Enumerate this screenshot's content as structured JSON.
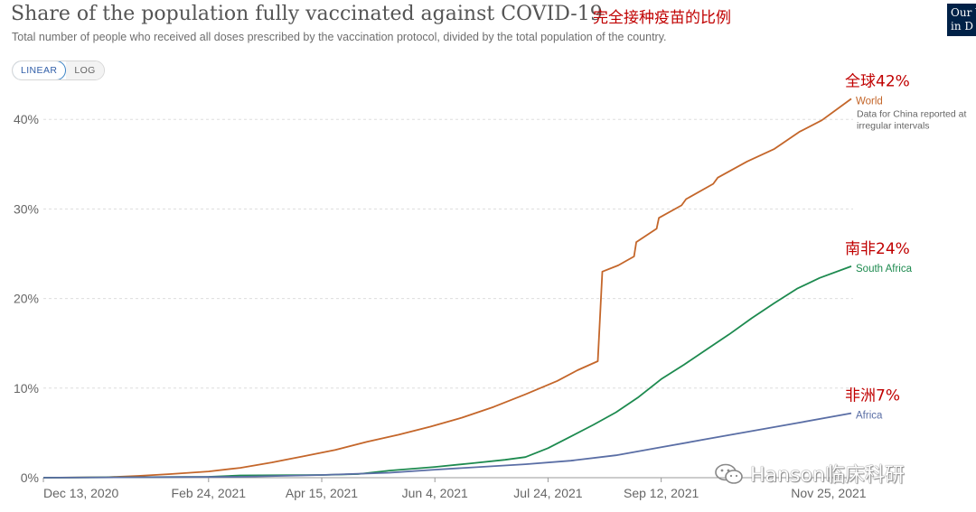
{
  "header": {
    "title": "Share of the population fully vaccinated against COVID-19",
    "title_cn": "完全接种疫苗的比例",
    "subtitle": "Total number of people who received all doses prescribed by the vaccination protocol, divided by the total population of the country.",
    "logo_line1": "Our W",
    "logo_line2": "in D"
  },
  "controls": {
    "linear_label": "LINEAR",
    "log_label": "LOG",
    "selected": "LINEAR"
  },
  "watermark": "Hanson临床科研",
  "chart_data": {
    "type": "line",
    "x_tick_labels": [
      "Dec 13, 2020",
      "Feb 24, 2021",
      "Apr 15, 2021",
      "Jun 4, 2021",
      "Jul 24, 2021",
      "Sep 12, 2021",
      "Nov 25, 2021"
    ],
    "x_ticks": [
      "2020-12-13",
      "2021-02-24",
      "2021-04-15",
      "2021-06-04",
      "2021-07-24",
      "2021-09-12",
      "2021-11-25"
    ],
    "y_tick_labels": [
      "0%",
      "10%",
      "20%",
      "30%",
      "40%"
    ],
    "y_ticks": [
      0,
      10,
      20,
      30,
      40
    ],
    "ylim": [
      0,
      43
    ],
    "xlim": [
      "2020-12-13",
      "2021-12-05"
    ],
    "grid": "horizontal dashed",
    "series": [
      {
        "name": "World",
        "note": "Data for China reported at irregular intervals",
        "annotation": "全球42%",
        "color": "#c4662a",
        "points": [
          [
            "2020-12-13",
            0
          ],
          [
            "2021-01-10",
            0.05
          ],
          [
            "2021-01-24",
            0.2
          ],
          [
            "2021-02-07",
            0.4
          ],
          [
            "2021-02-24",
            0.7
          ],
          [
            "2021-03-10",
            1.1
          ],
          [
            "2021-03-24",
            1.7
          ],
          [
            "2021-04-07",
            2.4
          ],
          [
            "2021-04-21",
            3.1
          ],
          [
            "2021-05-05",
            4.0
          ],
          [
            "2021-05-19",
            4.8
          ],
          [
            "2021-06-02",
            5.7
          ],
          [
            "2021-06-16",
            6.7
          ],
          [
            "2021-06-30",
            7.9
          ],
          [
            "2021-07-14",
            9.3
          ],
          [
            "2021-07-28",
            10.8
          ],
          [
            "2021-08-06",
            12.0
          ],
          [
            "2021-08-15",
            13.0
          ],
          [
            "2021-08-17",
            23.0
          ],
          [
            "2021-08-24",
            23.7
          ],
          [
            "2021-08-31",
            24.7
          ],
          [
            "2021-09-01",
            26.3
          ],
          [
            "2021-09-10",
            27.8
          ],
          [
            "2021-09-11",
            29.0
          ],
          [
            "2021-09-21",
            30.4
          ],
          [
            "2021-09-23",
            31.1
          ],
          [
            "2021-10-05",
            32.8
          ],
          [
            "2021-10-07",
            33.5
          ],
          [
            "2021-10-20",
            35.3
          ],
          [
            "2021-11-01",
            36.7
          ],
          [
            "2021-11-12",
            38.6
          ],
          [
            "2021-11-22",
            39.9
          ],
          [
            "2021-12-05",
            42.3
          ]
        ]
      },
      {
        "name": "South Africa",
        "annotation": "南非24%",
        "color": "#1d8a4f",
        "points": [
          [
            "2020-12-13",
            0
          ],
          [
            "2021-02-24",
            0.1
          ],
          [
            "2021-03-10",
            0.25
          ],
          [
            "2021-04-15",
            0.3
          ],
          [
            "2021-05-01",
            0.4
          ],
          [
            "2021-05-15",
            0.8
          ],
          [
            "2021-06-04",
            1.2
          ],
          [
            "2021-06-20",
            1.6
          ],
          [
            "2021-07-05",
            2.0
          ],
          [
            "2021-07-14",
            2.3
          ],
          [
            "2021-07-24",
            3.3
          ],
          [
            "2021-08-03",
            4.6
          ],
          [
            "2021-08-13",
            5.9
          ],
          [
            "2021-08-23",
            7.3
          ],
          [
            "2021-09-02",
            9.0
          ],
          [
            "2021-09-12",
            11.0
          ],
          [
            "2021-09-22",
            12.6
          ],
          [
            "2021-10-02",
            14.3
          ],
          [
            "2021-10-12",
            16.0
          ],
          [
            "2021-10-22",
            17.8
          ],
          [
            "2021-11-01",
            19.5
          ],
          [
            "2021-11-11",
            21.1
          ],
          [
            "2021-11-21",
            22.3
          ],
          [
            "2021-12-05",
            23.6
          ]
        ]
      },
      {
        "name": "Africa",
        "annotation": "非洲7%",
        "color": "#5a6ea5",
        "points": [
          [
            "2020-12-13",
            0
          ],
          [
            "2021-03-10",
            0.1
          ],
          [
            "2021-04-15",
            0.3
          ],
          [
            "2021-05-15",
            0.55
          ],
          [
            "2021-06-04",
            0.9
          ],
          [
            "2021-06-24",
            1.2
          ],
          [
            "2021-07-14",
            1.5
          ],
          [
            "2021-08-03",
            1.9
          ],
          [
            "2021-08-23",
            2.5
          ],
          [
            "2021-09-12",
            3.4
          ],
          [
            "2021-10-02",
            4.3
          ],
          [
            "2021-10-22",
            5.2
          ],
          [
            "2021-11-11",
            6.1
          ],
          [
            "2021-12-05",
            7.2
          ]
        ]
      }
    ]
  }
}
